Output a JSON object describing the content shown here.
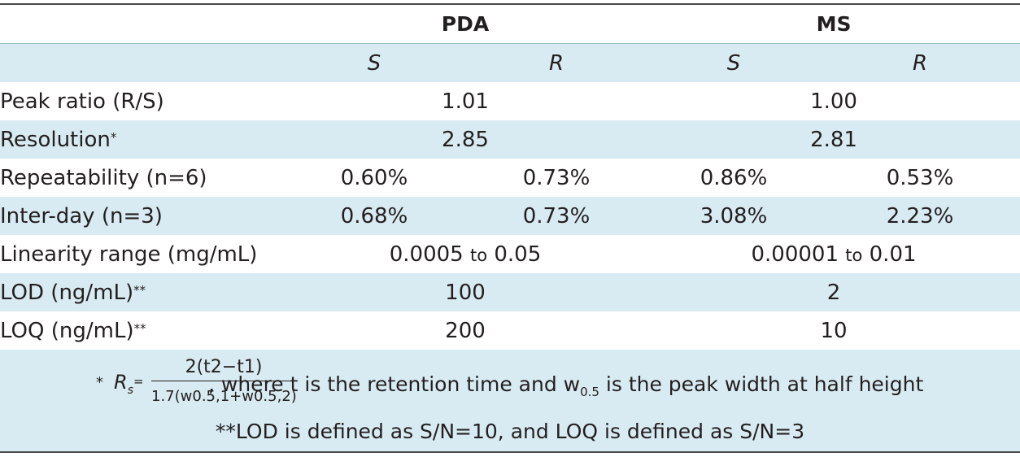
{
  "header": {
    "group_pda": "PDA",
    "group_ms": "MS",
    "sub": [
      "S",
      "R",
      "S",
      "R"
    ]
  },
  "rows": [
    {
      "label": "Peak ratio (R/S)",
      "pda": "1.01",
      "ms": "1.00"
    },
    {
      "label": "Resolution",
      "star": "*",
      "pda": "2.85",
      "ms": "2.81"
    },
    {
      "label": "Repeatability (n=6)",
      "values": [
        "0.60%",
        "0.73%",
        "0.86%",
        "0.53%"
      ]
    },
    {
      "label": "Inter-day (n=3)",
      "values": [
        "0.68%",
        "0.73%",
        "3.08%",
        "2.23%"
      ]
    },
    {
      "label": "Linearity range (mg/mL)",
      "pda_from": "0.0005",
      "pda_to": "0.05",
      "ms_from": "0.00001",
      "ms_to": "0.01",
      "to_word": "to"
    },
    {
      "label": "LOD (ng/mL)",
      "star": "**",
      "pda": "100",
      "ms": "2"
    },
    {
      "label": "LOQ (ng/mL)",
      "star": "**",
      "pda": "200",
      "ms": "10"
    }
  ],
  "notes": {
    "formula_star": "*",
    "formula_lhs": "R",
    "formula_lhs_sub": "s",
    "formula_eq": "=",
    "numerator": "2(t2−t1)",
    "denominator": "1.7(w0.5,1+w0.5,2)",
    "where_text_1": ", where t is the retention time and w",
    "where_sub": "0.5",
    "where_text_2": " is the peak width at half height",
    "note2": "**LOD is defined as S/N=10, and LOQ is defined as S/N=3"
  }
}
